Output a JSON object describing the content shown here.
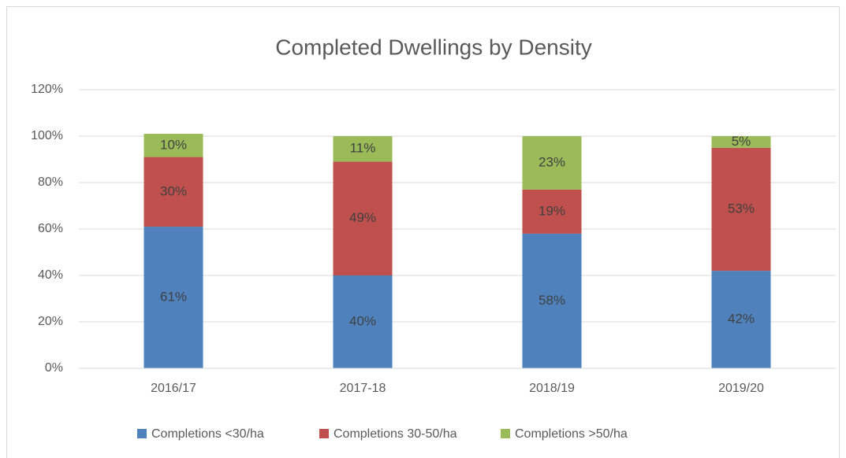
{
  "chart_data": {
    "type": "stacked_bar",
    "title": "Completed Dwellings by Density",
    "categories": [
      "2016/17",
      "2017-18",
      "2018/19",
      "2019/20"
    ],
    "series": [
      {
        "name": "Completions <30/ha",
        "color": "#4f81bd",
        "values": [
          61,
          40,
          58,
          42
        ],
        "value_labels": [
          "61%",
          "40%",
          "58%",
          "42%"
        ]
      },
      {
        "name": "Completions 30-50/ha",
        "color": "#c0504d",
        "values": [
          30,
          49,
          19,
          53
        ],
        "value_labels": [
          "30%",
          "49%",
          "19%",
          "53%"
        ]
      },
      {
        "name": "Completions >50/ha",
        "color": "#9bbb59",
        "values": [
          10,
          11,
          23,
          5
        ],
        "value_labels": [
          "10%",
          "11%",
          "23%",
          "5%"
        ]
      }
    ],
    "ylim": [
      0,
      120
    ],
    "yticks": [
      {
        "value": 0,
        "label": "0%"
      },
      {
        "value": 20,
        "label": "20%"
      },
      {
        "value": 40,
        "label": "40%"
      },
      {
        "value": 60,
        "label": "60%"
      },
      {
        "value": 80,
        "label": "80%"
      },
      {
        "value": 100,
        "label": "100%"
      },
      {
        "value": 120,
        "label": "120%"
      }
    ],
    "grid": true,
    "legend": "bottom"
  }
}
